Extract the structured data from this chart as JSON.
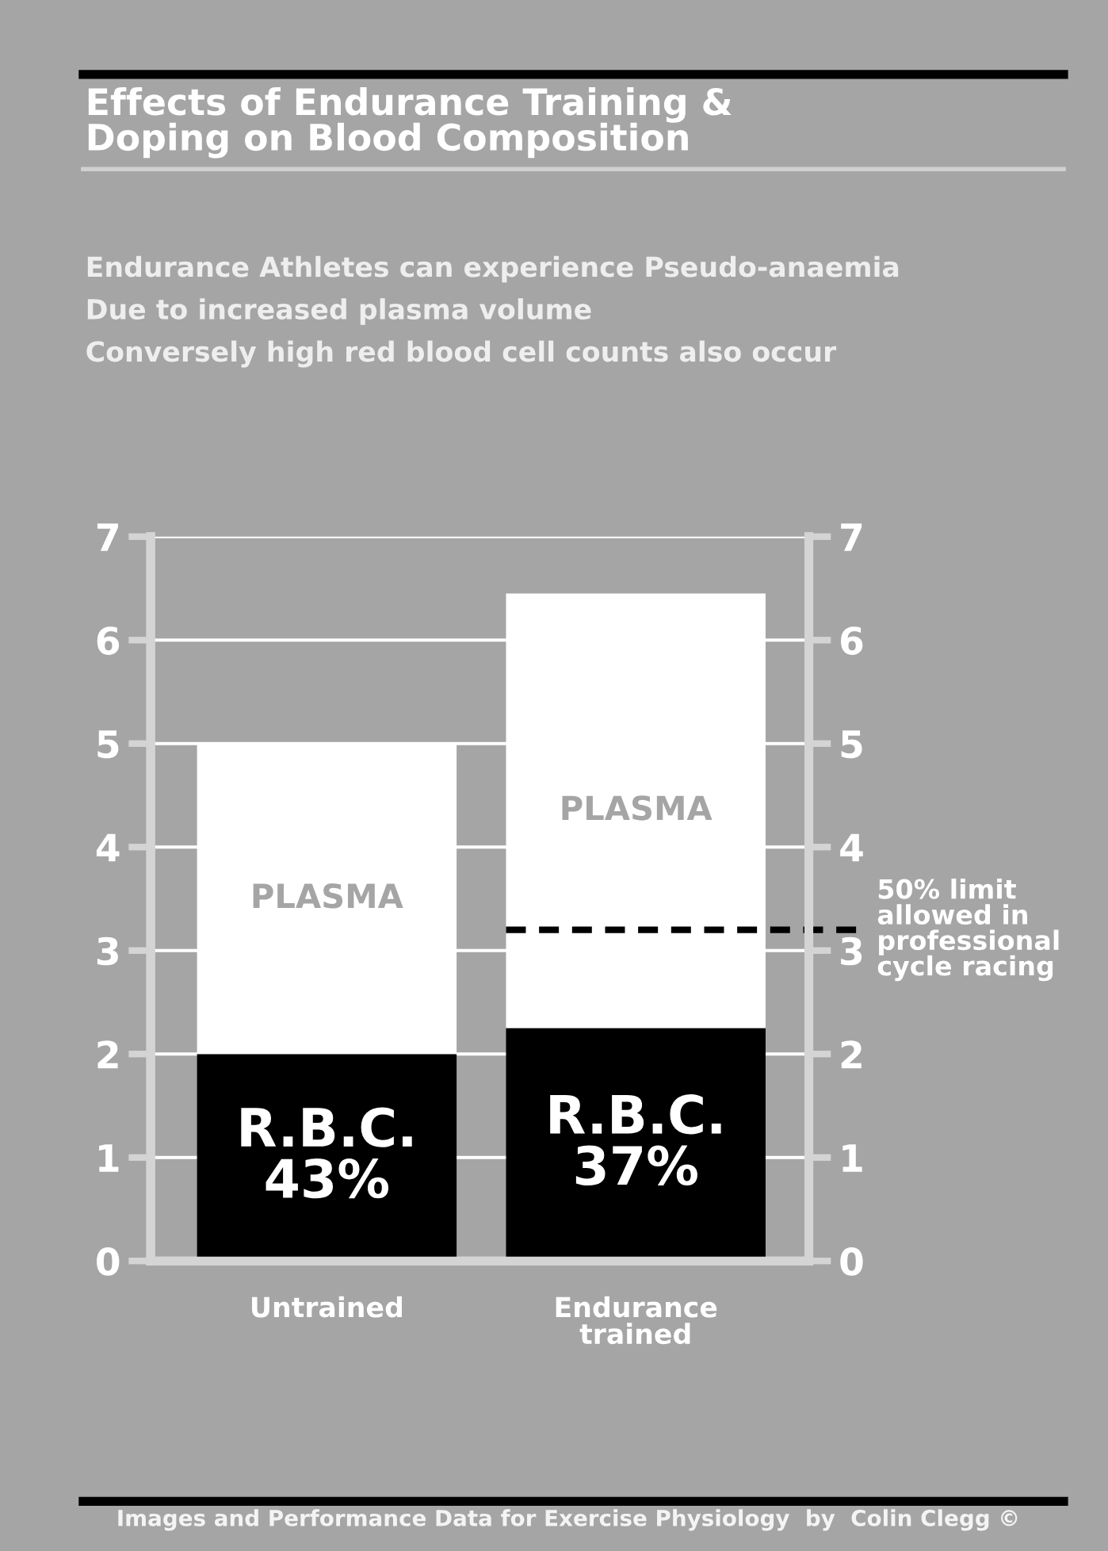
{
  "chart_data": {
    "type": "bar",
    "stacked": true,
    "title": "Effects of Endurance Training &\nDoping on Blood Composition",
    "subtitle": "Endurance Athletes can experience Pseudo-anaemia\nDue to increased plasma volume\nConversely high red blood cell counts also occur",
    "categories": [
      "Untrained",
      "Endurance\ntrained"
    ],
    "series": [
      {
        "color": "#000000",
        "values": [
          2.0,
          2.25
        ]
      },
      {
        "color": "#ffffff",
        "values": [
          3.0,
          4.2
        ]
      }
    ],
    "ylim": [
      0,
      7
    ],
    "yticks": [
      0,
      1,
      2,
      3,
      4,
      5,
      6,
      7
    ],
    "y2lim": [
      0,
      7
    ],
    "y2ticks": [
      0,
      1,
      2,
      3,
      4,
      5,
      6,
      7
    ],
    "grid": "y",
    "ref_lines": [
      {
        "axis": "y",
        "value": 3.2,
        "label": "50% limit\nallowed in\nprofessional\ncycle racing",
        "color": "#000000",
        "line_style": "dashed"
      }
    ],
    "annotations": [
      "R.B.C.\n43%",
      "R.B.C.\n37%",
      "PLASMA",
      "PLASMA",
      "Images and Performance Data for Exercise Physiology  by  Colin Clegg ©"
    ]
  }
}
